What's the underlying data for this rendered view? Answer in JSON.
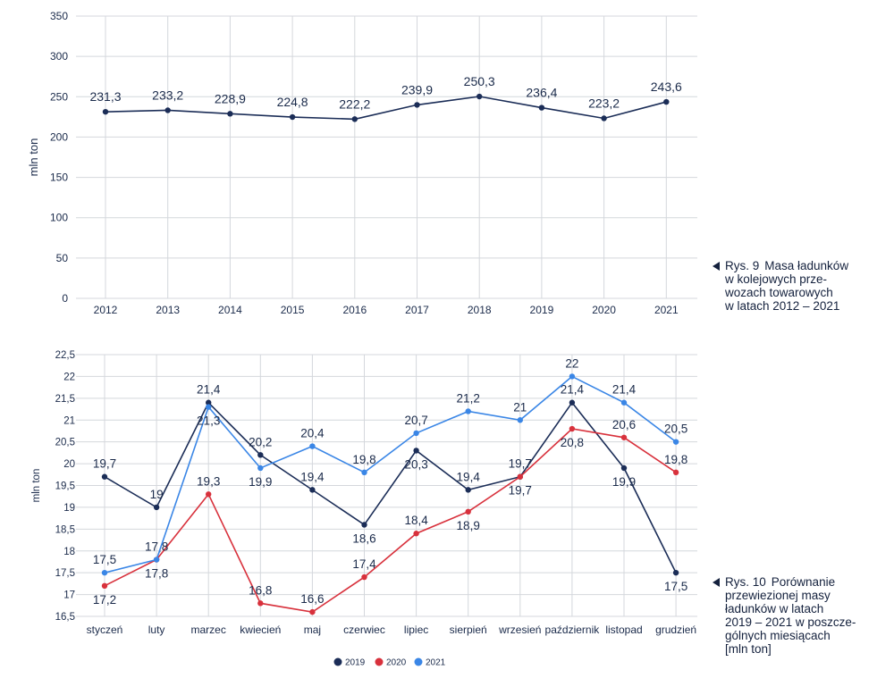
{
  "chart_data": [
    {
      "type": "line",
      "ylabel": "mln ton",
      "ylim": [
        0,
        350
      ],
      "yticks": [
        "0",
        "50",
        "100",
        "150",
        "200",
        "250",
        "300",
        "350"
      ],
      "categories": [
        "2012",
        "2013",
        "2014",
        "2015",
        "2016",
        "2017",
        "2018",
        "2019",
        "2020",
        "2021"
      ],
      "series": [
        {
          "color": "#1b2d57",
          "values": [
            231.3,
            233.2,
            228.9,
            224.8,
            222.2,
            239.9,
            250.3,
            236.4,
            223.2,
            243.6
          ],
          "labels": [
            "231,3",
            "233,2",
            "228,9",
            "224,8",
            "222,2",
            "239,9",
            "250,3",
            "236,4",
            "223,2",
            "243,6"
          ]
        }
      ],
      "grid": true,
      "caption": {
        "label": "Rys. 9",
        "lines": [
          "Masa ładunków",
          "w kolejowych prze-",
          "wozach towarowych",
          "w latach 2012 – 2021"
        ]
      }
    },
    {
      "type": "line",
      "ylabel": "mln ton",
      "ylim": [
        16.5,
        22.5
      ],
      "yticks": [
        "16,5",
        "17",
        "17,5",
        "18",
        "18,5",
        "19",
        "19,5",
        "20",
        "20,5",
        "21",
        "21,5",
        "22",
        "22,5"
      ],
      "categories": [
        "styczeń",
        "luty",
        "marzec",
        "kwiecień",
        "maj",
        "czerwiec",
        "lipiec",
        "sierpień",
        "wrzesień",
        "październik",
        "listopad",
        "grudzień"
      ],
      "series": [
        {
          "name": "2019",
          "color": "#1b2d57",
          "values": [
            19.7,
            19.0,
            21.4,
            20.2,
            19.4,
            18.6,
            20.3,
            19.4,
            19.7,
            21.4,
            19.9,
            17.5
          ],
          "labels": [
            "19,7",
            "19",
            "21,4",
            "20,2",
            "19,4",
            "18,6",
            "20,3",
            "19,4",
            "19,7",
            "21,4",
            "19,9",
            "17,5"
          ]
        },
        {
          "name": "2020",
          "color": "#d8313c",
          "values": [
            17.2,
            17.8,
            19.3,
            16.8,
            16.6,
            17.4,
            18.4,
            18.9,
            19.7,
            20.8,
            20.6,
            19.8
          ],
          "labels": [
            "17,2",
            "17,8",
            "19,3",
            "16,8",
            "16,6",
            "17,4",
            "18,4",
            "18,9",
            "19,7",
            "20,8",
            "20,6",
            "19,8"
          ]
        },
        {
          "name": "2021",
          "color": "#3a86e6",
          "values": [
            17.5,
            17.8,
            21.3,
            19.9,
            20.4,
            19.8,
            20.7,
            21.2,
            21.0,
            22.0,
            21.4,
            20.5
          ],
          "labels": [
            "17,5",
            "17,8",
            "21,3",
            "19,9",
            "20,4",
            "19,8",
            "20,7",
            "21,2",
            "21",
            "22",
            "21,4",
            "20,5"
          ]
        }
      ],
      "grid": true,
      "legend": "bottom",
      "caption": {
        "label": "Rys. 10",
        "lines": [
          "Porównanie",
          "przewiezionej masy",
          "ładunków w latach",
          "2019 – 2021 w poszcze-",
          "gólnych miesiącach",
          "[mln ton]"
        ]
      }
    }
  ]
}
